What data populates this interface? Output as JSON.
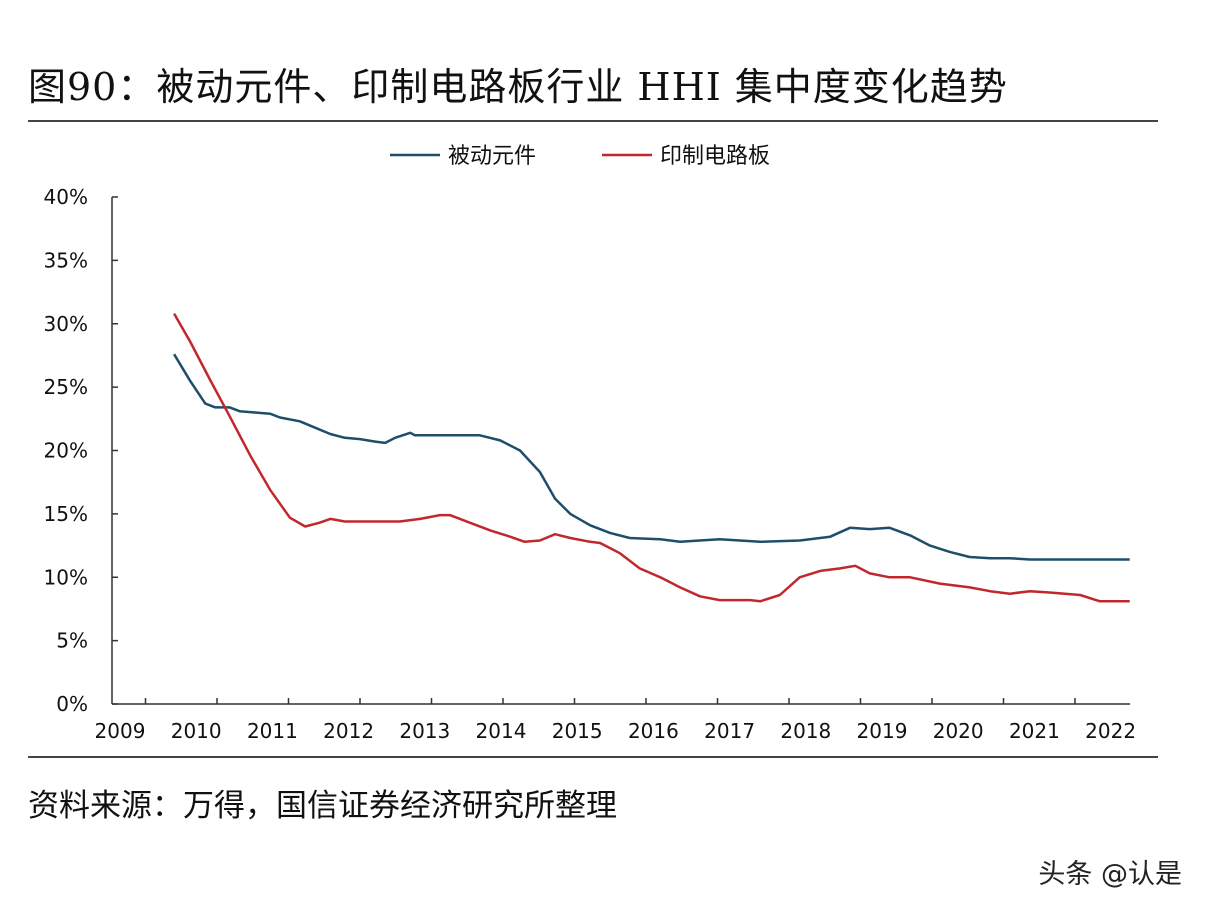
{
  "title": "图90：被动元件、印制电路板行业 HHI 集中度变化趋势",
  "source": "资料来源：万得，国信证券经济研究所整理",
  "watermark": "头条 @认是",
  "chart_data": {
    "type": "line",
    "title": "",
    "xlabel": "",
    "ylabel": "",
    "xlim": [
      2009,
      2022.3
    ],
    "ylim": [
      0,
      40
    ],
    "x_ticks": [
      "2009",
      "2010",
      "2011",
      "2012",
      "2013",
      "2014",
      "2015",
      "2016",
      "2017",
      "2018",
      "2019",
      "2020",
      "2021",
      "2022"
    ],
    "y_ticks": [
      "0%",
      "5%",
      "10%",
      "15%",
      "20%",
      "25%",
      "30%",
      "35%",
      "40%"
    ],
    "grid": false,
    "legend_position": "top",
    "series": [
      {
        "name": "被动元件",
        "color": "#1f4e6b",
        "x": [
          2009.71,
          2009.92,
          2010.12,
          2010.25,
          2010.44,
          2010.57,
          2010.77,
          2010.97,
          2011.1,
          2011.36,
          2011.56,
          2011.76,
          2011.95,
          2012.15,
          2012.35,
          2012.48,
          2012.61,
          2012.81,
          2012.87,
          2013.2,
          2013.72,
          2013.99,
          2014.25,
          2014.51,
          2014.71,
          2014.91,
          2015.17,
          2015.43,
          2015.69,
          2016.09,
          2016.35,
          2016.61,
          2016.87,
          2017.4,
          2017.92,
          2018.32,
          2018.58,
          2018.84,
          2019.1,
          2019.37,
          2019.63,
          2019.89,
          2020.15,
          2020.42,
          2020.68,
          2020.94,
          2022.25
        ],
        "values": [
          27.6,
          25.5,
          23.7,
          23.4,
          23.4,
          23.1,
          23.0,
          22.9,
          22.6,
          22.3,
          21.8,
          21.3,
          21.0,
          20.9,
          20.7,
          20.6,
          21.0,
          21.4,
          21.2,
          21.2,
          21.2,
          20.8,
          20.0,
          18.3,
          16.2,
          15.0,
          14.1,
          13.5,
          13.1,
          13.0,
          12.8,
          12.9,
          13.0,
          12.8,
          12.9,
          13.2,
          13.9,
          13.8,
          13.9,
          13.3,
          12.5,
          12.0,
          11.6,
          11.5,
          11.5,
          11.4,
          11.4
        ]
      },
      {
        "name": "印制电路板",
        "color": "#c0282d",
        "x": [
          2009.71,
          2009.92,
          2010.18,
          2010.44,
          2010.71,
          2010.97,
          2011.23,
          2011.43,
          2011.62,
          2011.76,
          2011.95,
          2012.67,
          2012.94,
          2013.2,
          2013.33,
          2013.59,
          2013.86,
          2014.12,
          2014.31,
          2014.51,
          2014.71,
          2014.91,
          2015.17,
          2015.3,
          2015.56,
          2015.82,
          2016.09,
          2016.35,
          2016.61,
          2016.87,
          2017.27,
          2017.4,
          2017.66,
          2017.92,
          2018.19,
          2018.45,
          2018.65,
          2018.84,
          2019.1,
          2019.37,
          2019.76,
          2020.15,
          2020.42,
          2020.68,
          2020.94,
          2021.2,
          2021.6,
          2021.86,
          2022.25
        ],
        "values": [
          30.8,
          28.6,
          25.6,
          22.7,
          19.6,
          16.9,
          14.7,
          14.0,
          14.3,
          14.6,
          14.4,
          14.4,
          14.6,
          14.9,
          14.9,
          14.3,
          13.7,
          13.2,
          12.8,
          12.9,
          13.4,
          13.1,
          12.8,
          12.7,
          11.9,
          10.7,
          10.0,
          9.2,
          8.5,
          8.2,
          8.2,
          8.1,
          8.6,
          10.0,
          10.5,
          10.7,
          10.9,
          10.3,
          10.0,
          10.0,
          9.5,
          9.2,
          8.9,
          8.7,
          8.9,
          8.8,
          8.6,
          8.1,
          8.1
        ]
      }
    ]
  }
}
